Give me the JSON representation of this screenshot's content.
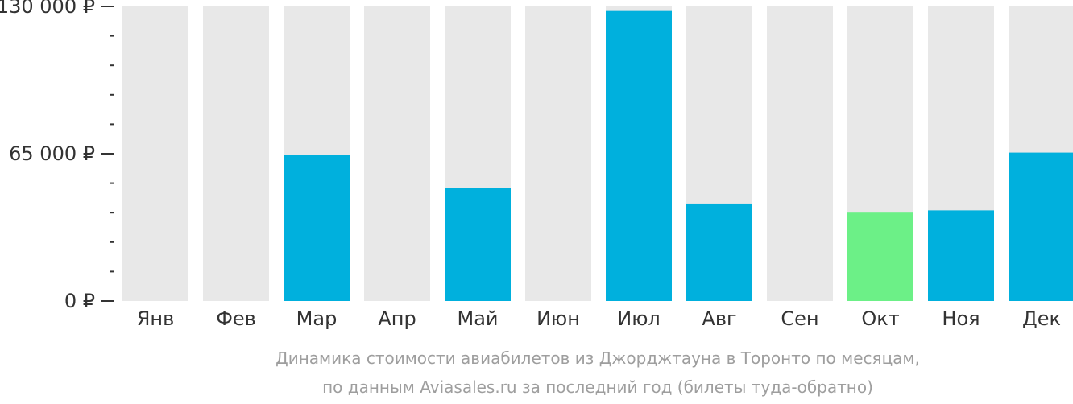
{
  "chart_data": {
    "type": "bar",
    "categories": [
      "Янв",
      "Фев",
      "Мар",
      "Апр",
      "Май",
      "Июн",
      "Июл",
      "Авг",
      "Сен",
      "Окт",
      "Ноя",
      "Дек"
    ],
    "values": [
      null,
      null,
      64500,
      null,
      50000,
      null,
      128000,
      43000,
      null,
      39000,
      40000,
      65500
    ],
    "highlight_index": 9,
    "ylim": [
      0,
      130000
    ],
    "y_tick_labels": [
      "130 000 ₽",
      "65 000 ₽",
      "0 ₽"
    ],
    "y_tick_values": [
      130000,
      65000,
      0
    ],
    "minor_tick_count": 9,
    "caption_line1": "Динамика стоимости авиабилетов из Джорджтауна в Торонто по месяцам,",
    "caption_line2": "по данным Aviasales.ru за последний год (билеты туда-обратно)",
    "colors": {
      "bar": "#00b0dd",
      "highlight": "#6cf087",
      "background_bar": "#e8e8e8",
      "tick": "#333333",
      "caption": "#9e9e9e"
    }
  }
}
